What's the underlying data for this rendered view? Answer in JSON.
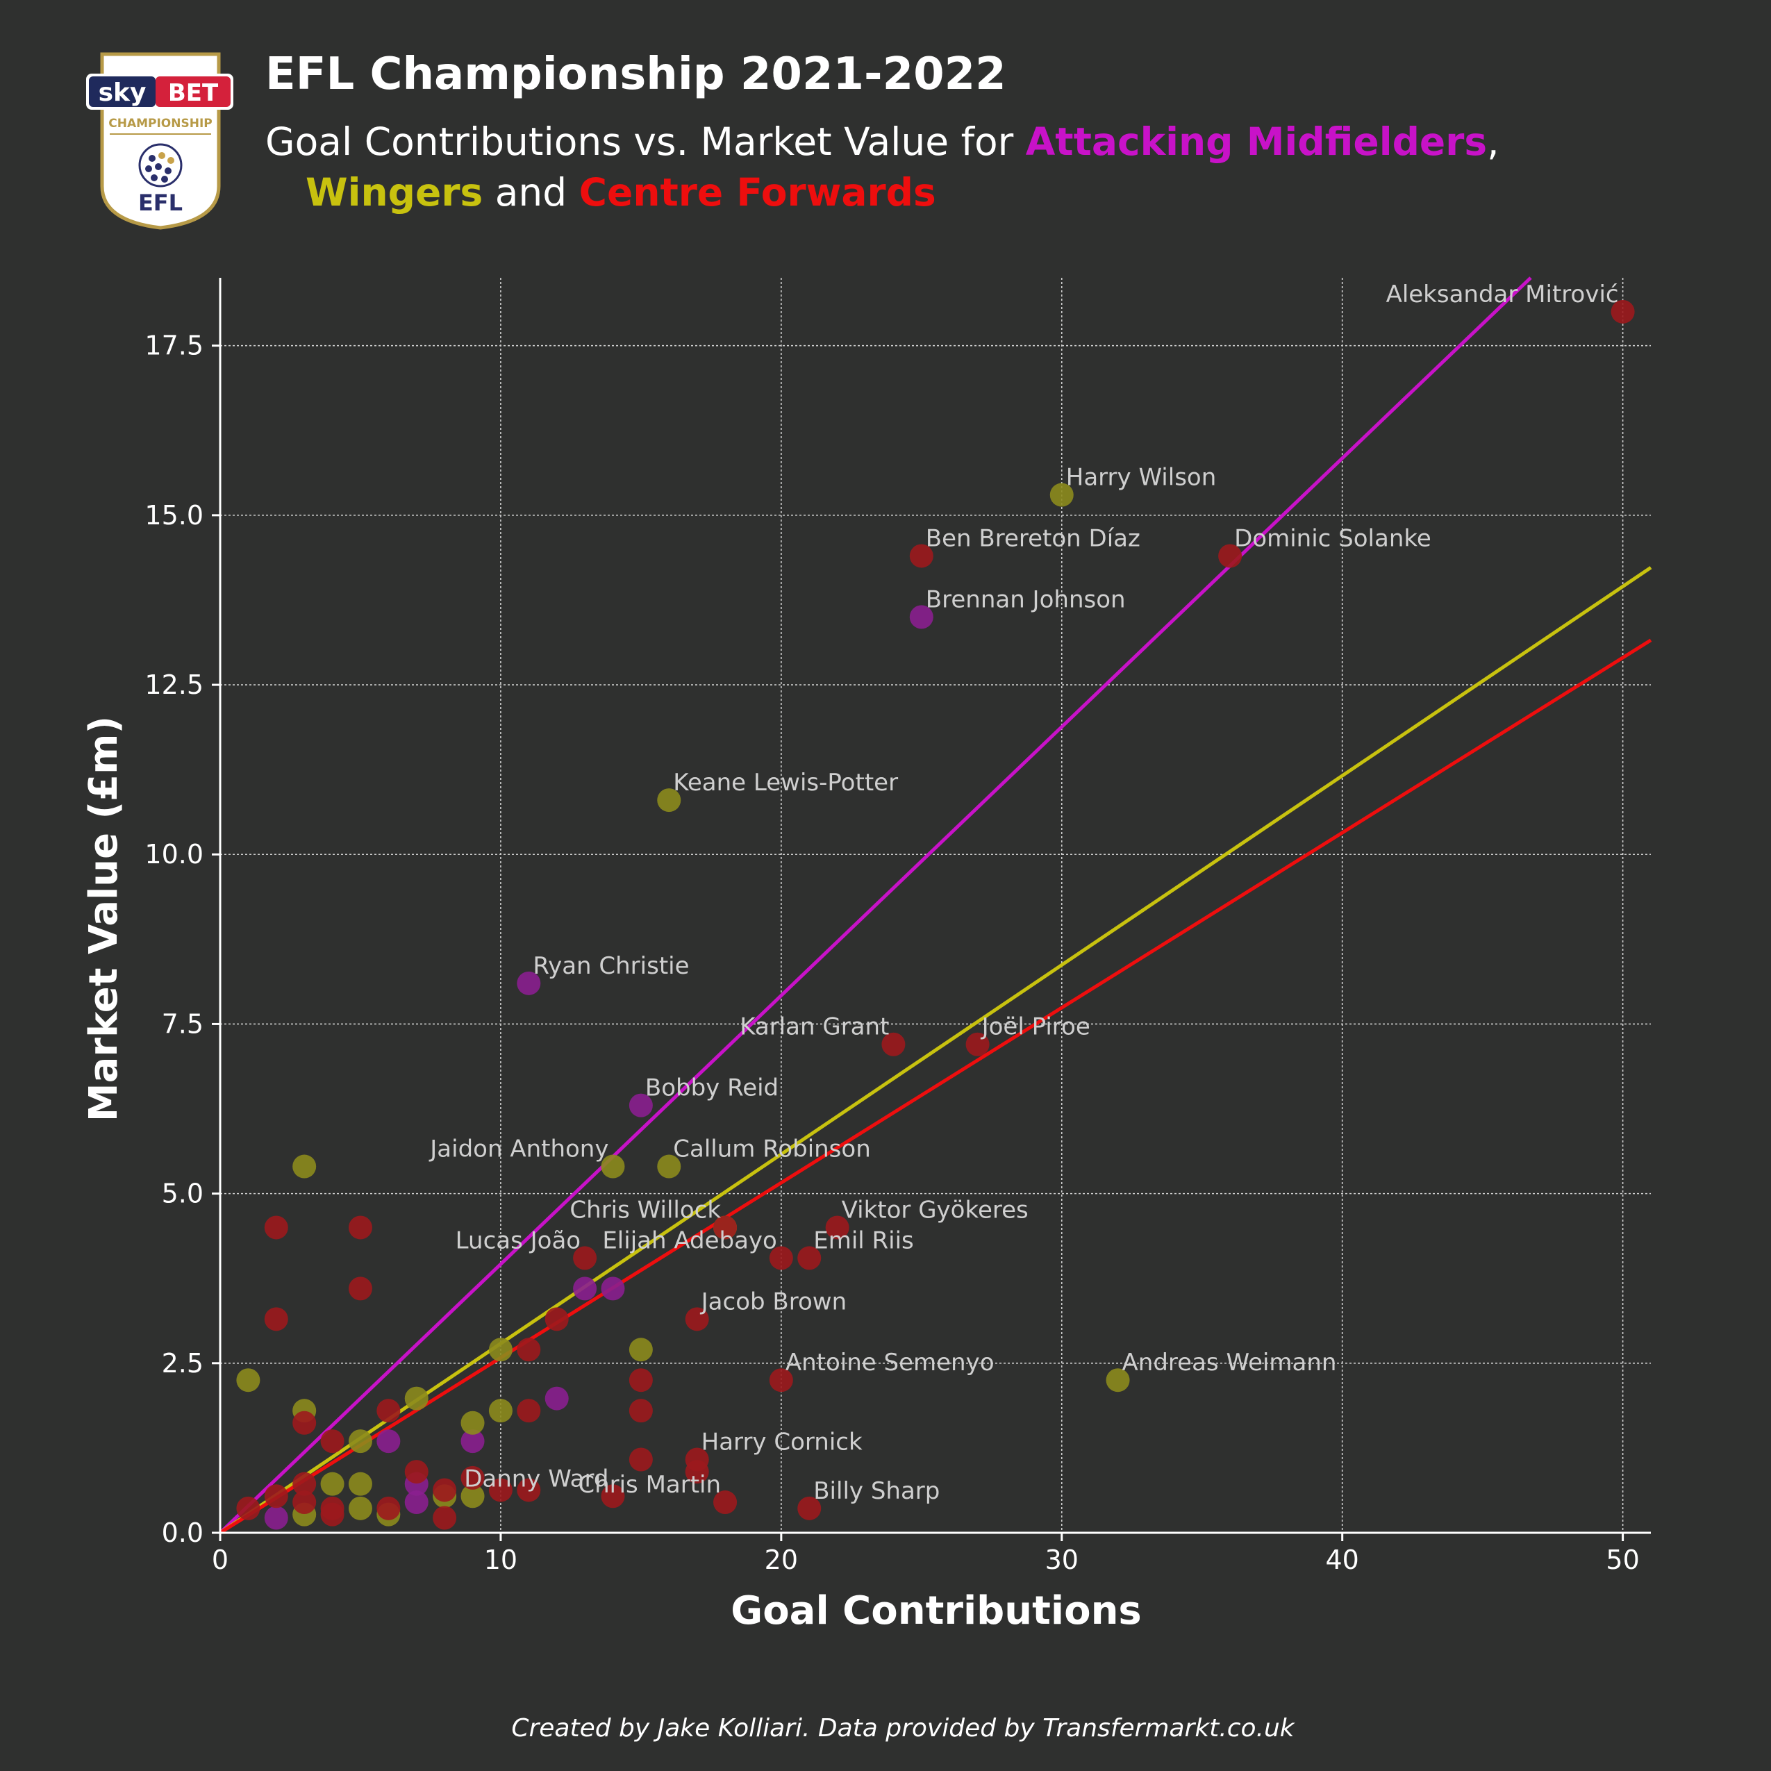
{
  "logo": {
    "sky_text": "sky",
    "bet_text": "BET",
    "competition_text": "CHAMPIONSHIP",
    "league_text": "EFL"
  },
  "header": {
    "title": "EFL Championship 2021-2022",
    "subtitle_prefix": "Goal Contributions vs. Market Value for ",
    "am_label": "Attacking Midfielders",
    "comma": ",",
    "wingers_label": "Wingers",
    "and_text": " and ",
    "cf_label": "Centre Forwards"
  },
  "colors": {
    "background": "#2f302f",
    "attacking_midfielders": "#c812c8",
    "wingers": "#c8c20f",
    "centre_forwards": "#ee0e0e",
    "am_point": "#8a1f8f",
    "winger_point": "#8c8b1d",
    "cf_point": "#9c1a1d"
  },
  "footer": {
    "credit": "Created by Jake Kolliari. Data provided by Transfermarkt.co.uk"
  },
  "chart_data": {
    "type": "scatter",
    "title": "EFL Championship 2021-2022",
    "xlabel": "Goal Contributions",
    "ylabel": "Market Value (£m)",
    "xlim": [
      0,
      51
    ],
    "ylim": [
      0,
      18.5
    ],
    "x_ticks": [
      0,
      10,
      20,
      30,
      40,
      50
    ],
    "y_ticks": [
      0.0,
      2.5,
      5.0,
      7.5,
      10.0,
      12.5,
      15.0,
      17.5
    ],
    "grid": true,
    "trend_lines": [
      {
        "name": "Attacking Midfielders",
        "slope": 0.396
      },
      {
        "name": "Wingers",
        "slope": 0.279
      },
      {
        "name": "Centre Forwards",
        "slope": 0.258
      }
    ],
    "series": [
      {
        "name": "Attacking Midfielders",
        "points": [
          {
            "x": 25,
            "y": 13.5,
            "label": "Brennan Johnson"
          },
          {
            "x": 11,
            "y": 8.1,
            "label": "Ryan Christie"
          },
          {
            "x": 15,
            "y": 6.3,
            "label": "Bobby Reid"
          },
          {
            "x": 13,
            "y": 3.6
          },
          {
            "x": 14,
            "y": 3.6
          },
          {
            "x": 12,
            "y": 1.98
          },
          {
            "x": 6,
            "y": 1.35
          },
          {
            "x": 9,
            "y": 1.35
          },
          {
            "x": 7,
            "y": 0.72
          },
          {
            "x": 7,
            "y": 0.45
          },
          {
            "x": 2,
            "y": 0.22
          }
        ]
      },
      {
        "name": "Wingers",
        "points": [
          {
            "x": 30,
            "y": 15.3,
            "label": "Harry Wilson"
          },
          {
            "x": 16,
            "y": 10.8,
            "label": "Keane Lewis-Potter"
          },
          {
            "x": 14,
            "y": 5.4,
            "label": "Jaidon Anthony"
          },
          {
            "x": 16,
            "y": 5.4,
            "label": "Callum Robinson"
          },
          {
            "x": 32,
            "y": 2.25,
            "label": "Andreas Weimann"
          },
          {
            "x": 18,
            "y": 4.5
          },
          {
            "x": 3,
            "y": 5.4
          },
          {
            "x": 15,
            "y": 2.7
          },
          {
            "x": 10,
            "y": 2.7
          },
          {
            "x": 1,
            "y": 2.25
          },
          {
            "x": 7,
            "y": 1.98
          },
          {
            "x": 3,
            "y": 1.8
          },
          {
            "x": 10,
            "y": 1.8
          },
          {
            "x": 9,
            "y": 1.62
          },
          {
            "x": 5,
            "y": 1.35
          },
          {
            "x": 4,
            "y": 0.72
          },
          {
            "x": 5,
            "y": 0.72
          },
          {
            "x": 8,
            "y": 0.54
          },
          {
            "x": 9,
            "y": 0.54
          },
          {
            "x": 5,
            "y": 0.36
          },
          {
            "x": 3,
            "y": 0.27
          },
          {
            "x": 6,
            "y": 0.27
          }
        ]
      },
      {
        "name": "Centre Forwards",
        "points": [
          {
            "x": 50,
            "y": 18.0,
            "label": "Aleksandar Mitrović"
          },
          {
            "x": 25,
            "y": 14.4,
            "label": "Ben Brereton Díaz"
          },
          {
            "x": 36,
            "y": 14.4,
            "label": "Dominic Solanke"
          },
          {
            "x": 24,
            "y": 7.2,
            "label": "Karlan Grant"
          },
          {
            "x": 27,
            "y": 7.2,
            "label": "Joël Piroe"
          },
          {
            "x": 22,
            "y": 4.5,
            "label": "Viktor Gyökeres"
          },
          {
            "x": 18,
            "y": 4.5,
            "label": "Chris Willock"
          },
          {
            "x": 13,
            "y": 4.05,
            "label": "Lucas João"
          },
          {
            "x": 20,
            "y": 4.05,
            "label": "Elijah Adebayo"
          },
          {
            "x": 21,
            "y": 4.05,
            "label": "Emil Riis"
          },
          {
            "x": 17,
            "y": 3.15,
            "label": "Jacob Brown"
          },
          {
            "x": 20,
            "y": 2.25,
            "label": "Antoine Semenyo"
          },
          {
            "x": 17,
            "y": 1.08,
            "label": "Harry Cornick"
          },
          {
            "x": 14,
            "y": 0.54,
            "label": "Danny Ward"
          },
          {
            "x": 18,
            "y": 0.45,
            "label": "Chris Martin"
          },
          {
            "x": 21,
            "y": 0.36,
            "label": "Billy Sharp"
          },
          {
            "x": 2,
            "y": 4.5
          },
          {
            "x": 5,
            "y": 4.5
          },
          {
            "x": 5,
            "y": 3.6
          },
          {
            "x": 2,
            "y": 3.15
          },
          {
            "x": 12,
            "y": 3.15
          },
          {
            "x": 11,
            "y": 2.7
          },
          {
            "x": 15,
            "y": 2.25
          },
          {
            "x": 15,
            "y": 1.8
          },
          {
            "x": 11,
            "y": 1.8
          },
          {
            "x": 6,
            "y": 1.8
          },
          {
            "x": 3,
            "y": 1.62
          },
          {
            "x": 4,
            "y": 1.35
          },
          {
            "x": 15,
            "y": 1.08
          },
          {
            "x": 17,
            "y": 0.9
          },
          {
            "x": 7,
            "y": 0.9
          },
          {
            "x": 9,
            "y": 0.81
          },
          {
            "x": 3,
            "y": 0.72
          },
          {
            "x": 10,
            "y": 0.63
          },
          {
            "x": 11,
            "y": 0.63
          },
          {
            "x": 8,
            "y": 0.63
          },
          {
            "x": 2,
            "y": 0.54
          },
          {
            "x": 3,
            "y": 0.45
          },
          {
            "x": 1,
            "y": 0.36
          },
          {
            "x": 6,
            "y": 0.36
          },
          {
            "x": 4,
            "y": 0.36
          },
          {
            "x": 4,
            "y": 0.27
          },
          {
            "x": 8,
            "y": 0.22
          }
        ]
      }
    ]
  }
}
